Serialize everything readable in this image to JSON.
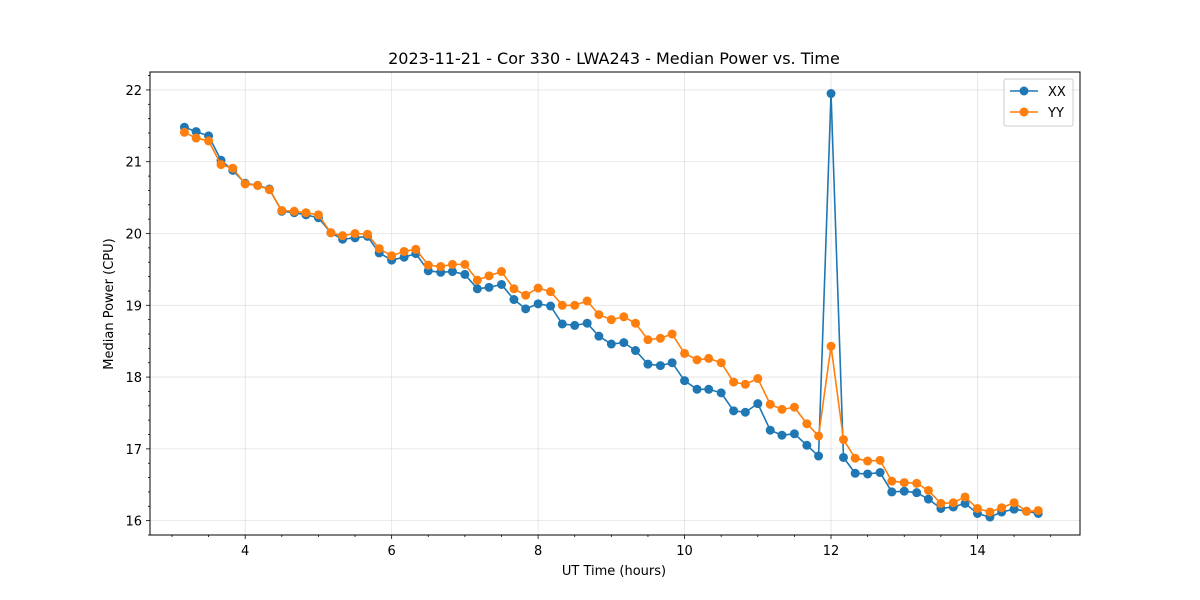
{
  "chart_data": {
    "type": "line",
    "title": "2023-11-21 - Cor 330 - LWA243 - Median Power vs. Time",
    "xlabel": "UT Time (hours)",
    "ylabel": "Median Power (CPU)",
    "xlim": [
      2.7,
      15.4
    ],
    "ylim": [
      15.8,
      22.25
    ],
    "xticks": [
      4,
      6,
      8,
      10,
      12,
      14
    ],
    "yticks": [
      16,
      17,
      18,
      19,
      20,
      21,
      22
    ],
    "grid": true,
    "legend_position": "top-right",
    "x": [
      3.17,
      3.33,
      3.5,
      3.67,
      3.83,
      4.0,
      4.17,
      4.33,
      4.5,
      4.67,
      4.83,
      5.0,
      5.17,
      5.33,
      5.5,
      5.67,
      5.83,
      6.0,
      6.17,
      6.33,
      6.5,
      6.67,
      6.83,
      7.0,
      7.17,
      7.33,
      7.5,
      7.67,
      7.83,
      8.0,
      8.17,
      8.33,
      8.5,
      8.67,
      8.83,
      9.0,
      9.17,
      9.33,
      9.5,
      9.67,
      9.83,
      10.0,
      10.17,
      10.33,
      10.5,
      10.67,
      10.83,
      11.0,
      11.17,
      11.33,
      11.5,
      11.67,
      11.83,
      12.0,
      12.17,
      12.33,
      12.5,
      12.67,
      12.83,
      13.0,
      13.17,
      13.33,
      13.5,
      13.67,
      13.83,
      14.0,
      14.17,
      14.33,
      14.5,
      14.67,
      14.83
    ],
    "series": [
      {
        "name": "XX",
        "color": "#1f77b4",
        "values": [
          21.48,
          21.42,
          21.36,
          21.02,
          20.88,
          20.7,
          20.67,
          20.62,
          20.31,
          20.29,
          20.26,
          20.22,
          20.01,
          19.92,
          19.94,
          19.96,
          19.73,
          19.63,
          19.67,
          19.72,
          19.48,
          19.46,
          19.47,
          19.43,
          19.23,
          19.25,
          19.29,
          19.08,
          18.95,
          19.02,
          18.99,
          18.74,
          18.72,
          18.75,
          18.57,
          18.46,
          18.48,
          18.37,
          18.18,
          18.16,
          18.2,
          17.95,
          17.83,
          17.83,
          17.78,
          17.53,
          17.51,
          17.63,
          17.26,
          17.19,
          17.21,
          17.05,
          16.9,
          21.95,
          16.88,
          16.66,
          16.65,
          16.67,
          16.4,
          16.41,
          16.39,
          16.3,
          16.17,
          16.19,
          16.24,
          16.1,
          16.05,
          16.12,
          16.16,
          16.13,
          16.1
        ]
      },
      {
        "name": "YY",
        "color": "#ff7f0e",
        "values": [
          21.41,
          21.33,
          21.29,
          20.96,
          20.91,
          20.69,
          20.67,
          20.61,
          20.32,
          20.31,
          20.29,
          20.26,
          20.01,
          19.97,
          20.0,
          19.99,
          19.79,
          19.69,
          19.75,
          19.78,
          19.56,
          19.54,
          19.57,
          19.57,
          19.35,
          19.41,
          19.47,
          19.23,
          19.14,
          19.24,
          19.19,
          19.0,
          19.0,
          19.06,
          18.87,
          18.8,
          18.84,
          18.75,
          18.52,
          18.54,
          18.6,
          18.33,
          18.24,
          18.26,
          18.2,
          17.93,
          17.9,
          17.98,
          17.62,
          17.55,
          17.58,
          17.35,
          17.18,
          18.43,
          17.13,
          16.87,
          16.83,
          16.84,
          16.55,
          16.53,
          16.52,
          16.42,
          16.24,
          16.25,
          16.33,
          16.17,
          16.12,
          16.18,
          16.25,
          16.13,
          16.14
        ]
      }
    ]
  }
}
